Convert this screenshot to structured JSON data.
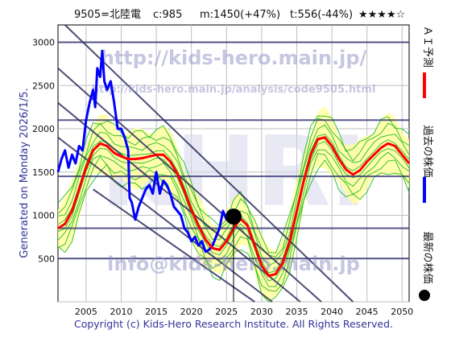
{
  "header": {
    "code": "9505=北陸電",
    "current": "c:985",
    "mid": "m:1450(+47%)",
    "target": "t:556(-44%)",
    "stars": "★★★★☆"
  },
  "side_left": "Generated on Monday 2026/1/5.",
  "legend": {
    "ai": "ＡＩ予測",
    "past": "過去の株価",
    "latest": "最新の株価"
  },
  "watermarks": {
    "url": "http://kids-hero.main.jp/",
    "analysis": "http://kids-hero.main.jp/analysis/code9505.html",
    "mail": "info@kids-hero.main.jp",
    "logo": "KHRI"
  },
  "footer": "Copyright (c) Kids-Hero Research Institute. All Rights Reserved.",
  "colors": {
    "price": "#0000ff",
    "forecast": "#ff0000",
    "band": "#22bb22",
    "band_fill": "#ffff99",
    "channel": "#2f2f5f",
    "hline": "#2f2f6f",
    "grid": "#bfbfbf",
    "text": "#333399"
  },
  "chart_data": {
    "type": "line",
    "xlim": [
      2001,
      2051
    ],
    "ylim": [
      0,
      3200
    ],
    "x_ticks": [
      2005,
      2010,
      2015,
      2020,
      2025,
      2030,
      2035,
      2040,
      2045,
      2050
    ],
    "y_ticks": [
      0,
      500,
      1000,
      1500,
      2000,
      2500,
      3000
    ],
    "grid": true,
    "latest_point": {
      "x": 2026.0,
      "y": 985
    },
    "horizontal_levels": [
      3000,
      2100,
      1450,
      850,
      500
    ],
    "channel_lines": [
      {
        "x": [
          2002,
          2043
        ],
        "y": [
          3200,
          0
        ]
      },
      {
        "x": [
          2001,
          2038.5
        ],
        "y": [
          2700,
          0
        ]
      },
      {
        "x": [
          2001,
          2035.5
        ],
        "y": [
          2300,
          0
        ]
      },
      {
        "x": [
          2001,
          2031.5
        ],
        "y": [
          1900,
          0
        ]
      },
      {
        "x": [
          2006,
          2029
        ],
        "y": [
          1300,
          0
        ]
      }
    ],
    "series": [
      {
        "name": "過去の株価",
        "x": [
          2001.0,
          2001.5,
          2002.0,
          2002.5,
          2003.0,
          2003.5,
          2004.0,
          2004.5,
          2005.0,
          2005.5,
          2006.0,
          2006.3,
          2006.6,
          2007.0,
          2007.3,
          2007.6,
          2008.0,
          2008.5,
          2009.0,
          2009.5,
          2010.0,
          2010.5,
          2011.0,
          2011.2,
          2011.5,
          2012.0,
          2012.5,
          2013.0,
          2013.5,
          2014.0,
          2014.5,
          2015.0,
          2015.5,
          2016.0,
          2016.5,
          2017.0,
          2017.5,
          2018.0,
          2018.5,
          2019.0,
          2019.5,
          2020.0,
          2020.5,
          2021.0,
          2021.5,
          2022.0,
          2022.5,
          2023.0,
          2023.5,
          2024.0,
          2024.5,
          2025.0,
          2025.5,
          2026.0
        ],
        "y": [
          1500,
          1650,
          1750,
          1550,
          1700,
          1600,
          1800,
          1750,
          2100,
          2300,
          2450,
          2250,
          2700,
          2600,
          2900,
          2550,
          2450,
          2550,
          2300,
          2000,
          2000,
          1900,
          1750,
          1200,
          1150,
          950,
          1100,
          1200,
          1300,
          1350,
          1250,
          1500,
          1250,
          1400,
          1350,
          1250,
          1100,
          1050,
          1000,
          850,
          800,
          700,
          750,
          650,
          700,
          580,
          600,
          650,
          750,
          850,
          1050,
          950,
          1000,
          985
        ]
      },
      {
        "name": "ＡＩ予測",
        "x": [
          2001,
          2002,
          2003,
          2004,
          2005,
          2006,
          2007,
          2008,
          2009,
          2010,
          2011,
          2012,
          2013,
          2014,
          2015,
          2016,
          2017,
          2018,
          2019,
          2020,
          2021,
          2022,
          2023,
          2024,
          2025,
          2026,
          2027,
          2028,
          2029,
          2030,
          2031,
          2032,
          2033,
          2034,
          2035,
          2036,
          2037,
          2038,
          2039,
          2040,
          2041,
          2042,
          2043,
          2044,
          2045,
          2046,
          2047,
          2048,
          2049,
          2050,
          2051
        ],
        "y": [
          850,
          900,
          1050,
          1300,
          1550,
          1750,
          1830,
          1800,
          1720,
          1680,
          1650,
          1650,
          1660,
          1680,
          1700,
          1700,
          1620,
          1480,
          1280,
          1060,
          880,
          720,
          620,
          600,
          700,
          850,
          960,
          880,
          650,
          420,
          300,
          320,
          450,
          700,
          1050,
          1400,
          1700,
          1880,
          1900,
          1800,
          1650,
          1530,
          1470,
          1520,
          1620,
          1700,
          1780,
          1830,
          1800,
          1700,
          1600
        ]
      }
    ]
  }
}
